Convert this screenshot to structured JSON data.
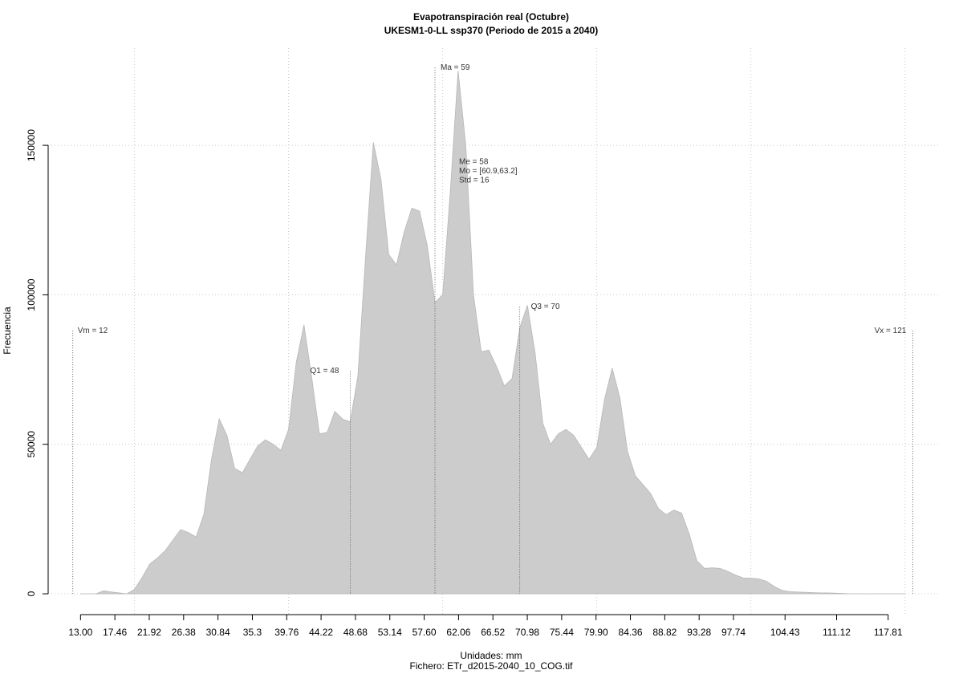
{
  "chart_data": {
    "type": "area",
    "title": "Evapotranspiración real (Octubre)",
    "subtitle": "UKESM1-0-LL ssp370 (Periodo de 2015 a 2040)",
    "x_label": "Unidades: mm",
    "y_label": "Frecuencia",
    "footer": "Fichero: ETr_d2015-2040_10_COG.tif",
    "color": "#cccccc",
    "x": [
      13,
      14,
      15,
      16,
      17,
      18,
      19,
      20,
      21,
      22,
      23,
      24,
      25,
      26,
      27,
      28,
      29,
      30,
      31,
      32,
      33,
      34,
      35,
      36,
      37,
      38,
      39,
      40,
      41,
      42,
      43,
      44,
      45,
      46,
      47,
      48,
      49,
      50,
      51,
      52,
      53,
      54,
      55,
      56,
      57,
      58,
      59,
      60,
      61,
      62,
      63,
      64,
      65,
      66,
      67,
      68,
      69,
      70,
      71,
      72,
      73,
      74,
      75,
      76,
      77,
      78,
      79,
      80,
      81,
      82,
      83,
      84,
      85,
      86,
      87,
      88,
      89,
      90,
      91,
      92,
      93,
      94,
      95,
      96,
      97,
      98,
      99,
      100,
      101,
      102,
      103,
      104,
      105,
      106,
      107,
      108,
      109,
      110,
      111,
      112,
      113,
      114,
      115,
      116,
      117,
      118,
      119,
      120
    ],
    "values": [
      0,
      0,
      0,
      1000,
      600,
      300,
      0,
      1500,
      5500,
      10000,
      12000,
      14500,
      18000,
      21500,
      20500,
      19000,
      26500,
      45000,
      58500,
      53000,
      42000,
      40500,
      45000,
      49500,
      51500,
      50000,
      48000,
      55000,
      77500,
      90000,
      72500,
      53500,
      54000,
      61000,
      58500,
      57500,
      73000,
      113000,
      151000,
      138500,
      113500,
      110000,
      121000,
      129000,
      128000,
      116500,
      97500,
      100000,
      135000,
      175000,
      150000,
      100000,
      81000,
      81500,
      76000,
      69500,
      72000,
      89000,
      96500,
      80500,
      57000,
      50000,
      53500,
      55000,
      53000,
      49000,
      45000,
      49000,
      65000,
      75500,
      65500,
      47500,
      39500,
      36500,
      33500,
      28500,
      26500,
      28000,
      27000,
      20000,
      11000,
      8500,
      8700,
      8500,
      7500,
      6300,
      5300,
      5200,
      5000,
      4200,
      2500,
      1200,
      700,
      600,
      500,
      400,
      300,
      300,
      200,
      100,
      0,
      0,
      0,
      0,
      0,
      0,
      0,
      0
    ],
    "xlim": [
      8.8,
      124.4
    ],
    "ylim": [
      -7500,
      182500
    ],
    "xticks": [
      {
        "value": 13,
        "label": "13.00"
      },
      17.46,
      21.92,
      26.38,
      30.84,
      35.3,
      39.76,
      44.22,
      48.68,
      53.14,
      {
        "value": 57.6,
        "label": "57.60"
      },
      62.06,
      66.52,
      70.98,
      75.44,
      {
        "value": 79.9,
        "label": "79.90"
      },
      84.36,
      88.82,
      93.28,
      97.74,
      104.43,
      111.12,
      117.81
    ],
    "xticks_fix": null,
    "yticks": [
      0,
      50000,
      100000,
      150000
    ],
    "xgrid": [
      20,
      40,
      60,
      80,
      100,
      120
    ],
    "grid": true,
    "markers": [
      {
        "label": "Vm = 12",
        "x": 12,
        "top": 88000
      },
      {
        "label": "Q1 = 48",
        "x": 48,
        "top": 74500
      },
      {
        "label": "Ma = 59",
        "x": 59,
        "top": 176000
      },
      {
        "label": "Q3 = 70",
        "x": 70,
        "top": 96000
      },
      {
        "label": "Vx = 121",
        "x": 121,
        "top": 88000
      }
    ],
    "stats": [
      "Me = 58",
      "Mo = [60.9,63.2]",
      "Std = 16"
    ]
  }
}
